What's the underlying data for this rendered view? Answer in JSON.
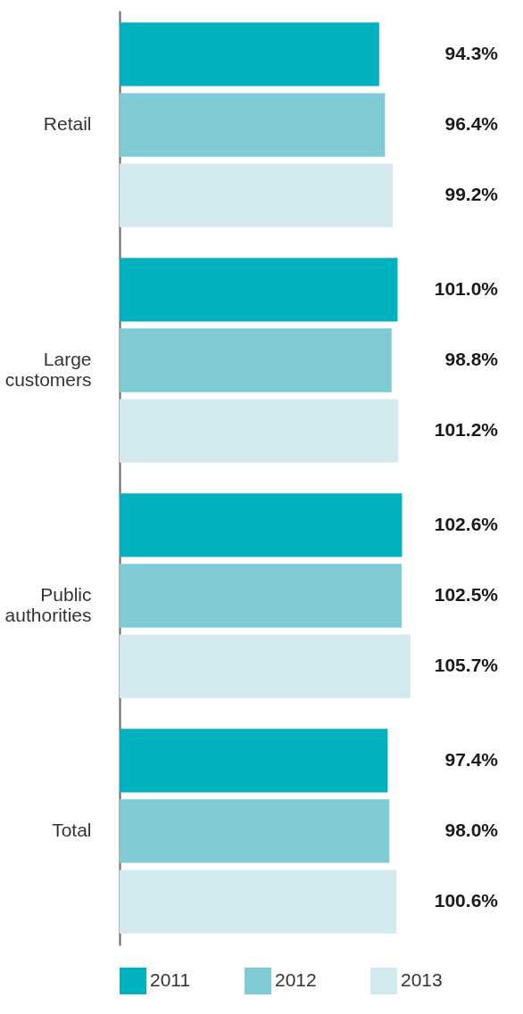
{
  "chart_data": {
    "type": "bar",
    "orientation": "horizontal",
    "categories": [
      "Retail",
      "Large\ncustomers",
      "Public\nauthorities",
      "Total"
    ],
    "series": [
      {
        "name": "2011",
        "color": "#00b2c0",
        "values": [
          94.3,
          101.0,
          102.6,
          97.4
        ],
        "value_labels": [
          "94.3%",
          "101.0%",
          "102.6%",
          "97.4%"
        ]
      },
      {
        "name": "2012",
        "color": "#7fcbd5",
        "values": [
          96.4,
          98.8,
          102.5,
          98.0
        ],
        "value_labels": [
          "96.4%",
          "98.8%",
          "102.5%",
          "98.0%"
        ]
      },
      {
        "name": "2013",
        "color": "#d3eaee",
        "values": [
          99.2,
          101.2,
          105.7,
          100.6
        ],
        "value_labels": [
          "99.2%",
          "101.2%",
          "105.7%",
          "100.6%"
        ]
      }
    ],
    "legend": "bottom",
    "grid": false
  }
}
